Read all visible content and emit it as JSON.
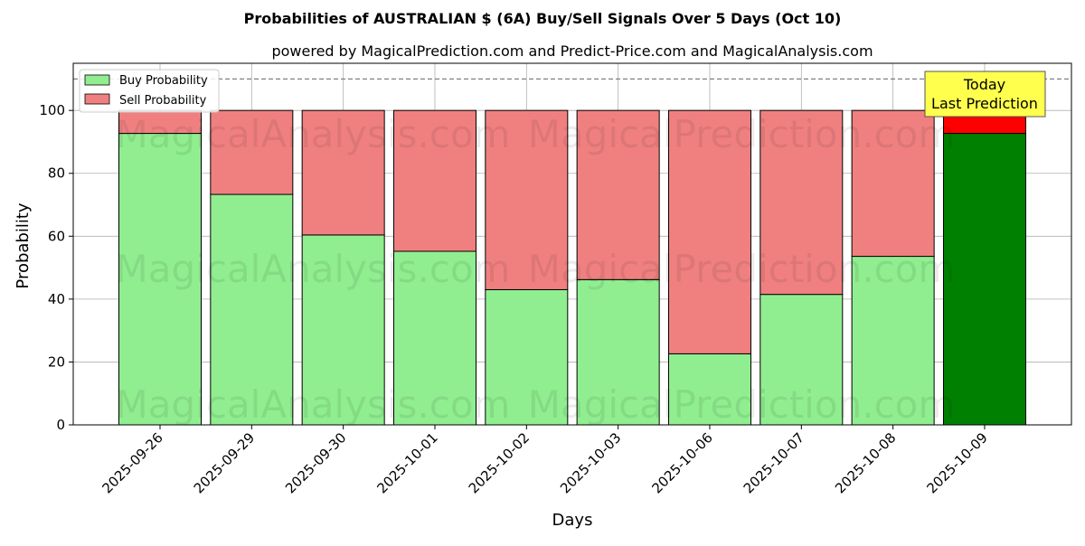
{
  "chart_data": {
    "type": "bar",
    "stacked": true,
    "title": "Probabilities of AUSTRALIAN $ (6A) Buy/Sell Signals Over 5 Days (Oct 10)",
    "subtitle": "powered by MagicalPrediction.com and Predict-Price.com and MagicalAnalysis.com",
    "xlabel": "Days",
    "ylabel": "Probability",
    "ylim": [
      0,
      115
    ],
    "yticks": [
      0,
      20,
      40,
      60,
      80,
      100
    ],
    "grid": true,
    "legend_placement": "top-left",
    "reference_line": 110,
    "categories": [
      "2025-09-26",
      "2025-09-29",
      "2025-09-30",
      "2025-10-01",
      "2025-10-02",
      "2025-10-03",
      "2025-10-06",
      "2025-10-07",
      "2025-10-08",
      "2025-10-09"
    ],
    "series": [
      {
        "name": "Buy Probability",
        "values": [
          92.7,
          73.3,
          60.4,
          55.2,
          43.0,
          46.2,
          22.6,
          41.5,
          53.6,
          92.7
        ]
      },
      {
        "name": "Sell Probability",
        "values": [
          7.3,
          26.7,
          39.6,
          44.8,
          57.0,
          53.8,
          77.4,
          58.5,
          46.4,
          7.3
        ]
      }
    ],
    "colors": {
      "buy": "#90ee90",
      "sell": "#f08080",
      "buy_highlight": "#008000",
      "sell_highlight": "#ff0000",
      "annotation_bg": "#ffff4d"
    },
    "highlight_index": 9,
    "annotation": {
      "line1": "Today",
      "line2": "Last Prediction"
    },
    "watermarks": [
      "MagicalAnalysis.com",
      "MagicalPrediction.com"
    ]
  }
}
